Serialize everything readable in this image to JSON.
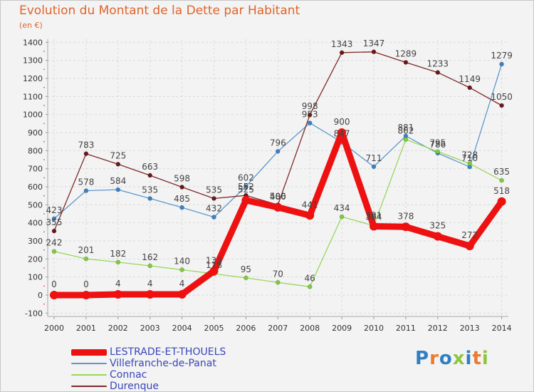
{
  "title": "Evolution du Montant de la Dette par Habitant",
  "unit_label": "(en €)",
  "logo_text": "Proxiti",
  "colors": {
    "background": "#f3f3f3",
    "grid": "#d9d9d9",
    "title": "#e0642a",
    "legend_text": "#3a46b8",
    "logo": [
      "#2f7fc1",
      "#e97c2f",
      "#2f7fc1",
      "#8cc63e",
      "#2f7fc1",
      "#e97c2f",
      "#8cc63e"
    ]
  },
  "chart_data": {
    "type": "line",
    "title": "Evolution du Montant de la Dette par Habitant",
    "ylabel": "(en €)",
    "xlabel": "",
    "x": [
      "2000",
      "2001",
      "2002",
      "2003",
      "2004",
      "2005",
      "2006",
      "2007",
      "2008",
      "2009",
      "2010",
      "2011",
      "2012",
      "2013",
      "2014"
    ],
    "ylim": [
      -100,
      1400
    ],
    "yticks": [
      -100,
      0,
      100,
      200,
      300,
      400,
      500,
      600,
      700,
      800,
      900,
      1000,
      1100,
      1200,
      1300,
      1400
    ],
    "grid": true,
    "legend_position": "bottom-left",
    "series": [
      {
        "name": "LESTRADE-ET-THOUELS",
        "color": "#ee1111",
        "values": [
          0,
          0,
          4,
          4,
          4,
          133,
          525,
          486,
          441,
          900,
          381,
          378,
          325,
          272,
          518
        ],
        "labels": [
          "0",
          "0",
          "4",
          "4",
          "4",
          "133",
          "525",
          "486",
          "441",
          "900",
          "381",
          "378",
          "325",
          "272",
          "518"
        ]
      },
      {
        "name": "Villefranche-de-Panat",
        "color": "#5f98cc",
        "values": [
          423,
          578,
          584,
          535,
          485,
          432,
          602,
          796,
          953,
          847,
          711,
          881,
          786,
          710,
          1279
        ],
        "labels": [
          "423",
          "578",
          "584",
          "535",
          "485",
          "432",
          "602",
          "796",
          "953",
          "847",
          "711",
          "881",
          "786",
          "710",
          "1279"
        ]
      },
      {
        "name": "Connac",
        "color": "#9ad65c",
        "values": [
          242,
          201,
          182,
          162,
          140,
          118,
          95,
          70,
          46,
          434,
          384,
          862,
          795,
          728,
          635
        ],
        "labels": [
          "242",
          "201",
          "182",
          "162",
          "140",
          "118",
          "95",
          "70",
          "46",
          "434",
          "384",
          "862",
          "795",
          "728",
          "635"
        ]
      },
      {
        "name": "Durenque",
        "color": "#7f2a2a",
        "values": [
          355,
          783,
          725,
          663,
          598,
          535,
          552,
          500,
          998,
          1343,
          1347,
          1289,
          1233,
          1149,
          1050
        ],
        "labels": [
          "355",
          "783",
          "725",
          "663",
          "598",
          "535",
          "552",
          "500",
          "998",
          "1343",
          "1347",
          "1289",
          "1233",
          "1149",
          "1050"
        ]
      }
    ]
  }
}
